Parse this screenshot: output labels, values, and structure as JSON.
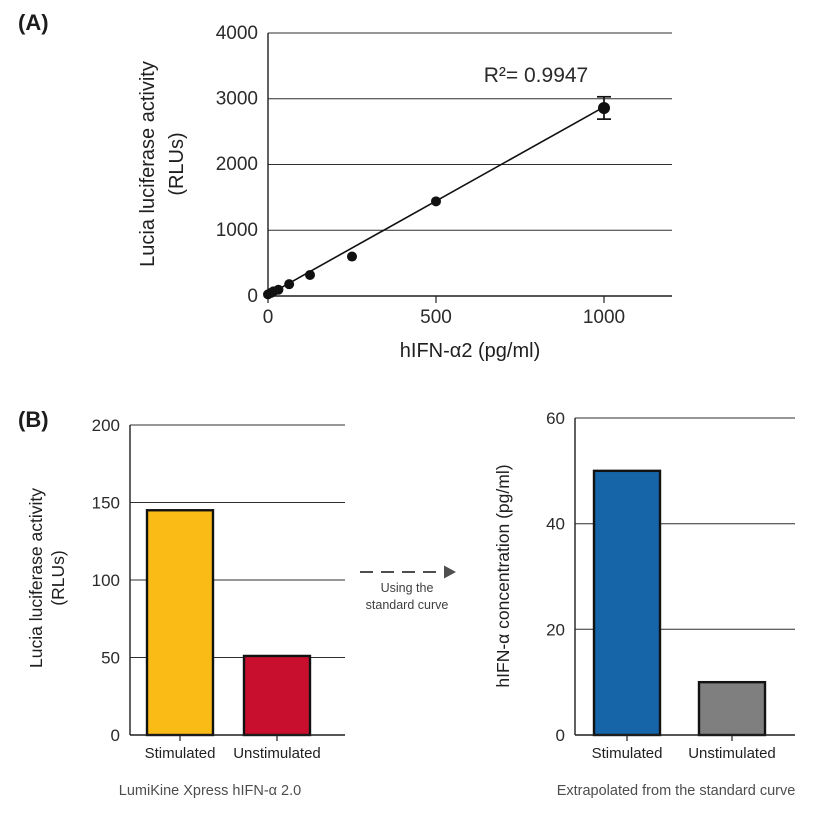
{
  "figure": {
    "panel_a": {
      "label": "(A)",
      "y_axis_title_line1": "Lucia luciferase activity",
      "y_axis_title_line2": "(RLUs)",
      "x_axis_title": "hIFN-α2 (pg/ml)",
      "annotation": "R²= 0.9947"
    },
    "panel_b": {
      "label": "(B)",
      "left_chart": {
        "y_axis_title_line1": "Lucia luciferase activity",
        "y_axis_title_line2": "(RLUs)"
      },
      "arrow": {
        "line1": "Using the",
        "line2": "standard curve"
      },
      "right_chart": {
        "y_axis_title": "hIFN-α concentration (pg/ml)"
      }
    }
  },
  "colors": {
    "stimulated_rlu_bar": "#FBBB17",
    "unstimulated_rlu_bar": "#C8102E",
    "stimulated_conc_bar": "#1565A8",
    "unstimulated_conc_bar": "#7F7F7F",
    "axis": "#2B2B2B",
    "marker": "#111111"
  },
  "chart_data": [
    {
      "id": "standard-curve",
      "type": "scatter",
      "x_label": "hIFN-α2 (pg/ml)",
      "y_label": "Lucia luciferase activity (RLUs)",
      "annotation": "R²= 0.9947",
      "x": [
        0,
        8,
        16,
        31,
        63,
        125,
        250,
        500,
        1000
      ],
      "y": [
        25,
        45,
        70,
        95,
        180,
        320,
        600,
        1440,
        2860
      ],
      "y_err": [
        0,
        0,
        0,
        0,
        0,
        0,
        0,
        0,
        170
      ],
      "fit_line": {
        "x1": 0,
        "y1": 15,
        "x2": 1000,
        "y2": 2875
      },
      "xlim": [
        0,
        1200
      ],
      "ylim": [
        0,
        4000
      ],
      "xticks": [
        0,
        500,
        1000
      ],
      "yticks": [
        0,
        1000,
        2000,
        3000,
        4000
      ],
      "marker": "filled-black-circle",
      "grid": "horizontal"
    },
    {
      "id": "luciferase-bars",
      "type": "bar",
      "categories": [
        "Stimulated",
        "Unstimulated"
      ],
      "values": [
        145,
        51
      ],
      "bar_colors": [
        "#FBBB17",
        "#C8102E"
      ],
      "ylabel": "Lucia luciferase activity (RLUs)",
      "ylim": [
        0,
        200
      ],
      "yticks": [
        0,
        50,
        100,
        150,
        200
      ],
      "caption": "LumiKine Xpress hIFN-α 2.0",
      "grid": "horizontal"
    },
    {
      "id": "concentration-bars",
      "type": "bar",
      "categories": [
        "Stimulated",
        "Unstimulated"
      ],
      "values": [
        50,
        10
      ],
      "bar_colors": [
        "#1565A8",
        "#7F7F7F"
      ],
      "ylabel": "hIFN-α concentration (pg/ml)",
      "ylim": [
        0,
        60
      ],
      "yticks": [
        0,
        20,
        40,
        60
      ],
      "caption": "Extrapolated from the standard curve",
      "grid": "horizontal"
    }
  ]
}
